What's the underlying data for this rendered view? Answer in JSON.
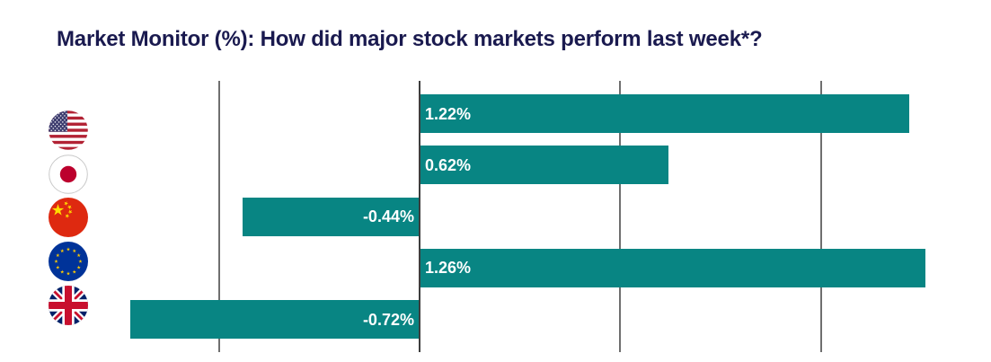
{
  "title": "Market Monitor (%): How did major stock markets perform last week*?",
  "colors": {
    "background": "#FFFFFF",
    "title_text": "#1A1A4F",
    "bar_fill": "#088583",
    "bar_label_text": "#FFFFFF",
    "gridline": "#6F6F6F",
    "zero_axis": "#3E3E3E"
  },
  "chart_data": {
    "type": "bar",
    "orientation": "horizontal",
    "title": "Market Monitor (%): How did major stock markets perform last week*?",
    "categories": [
      "United States",
      "Japan",
      "China",
      "European Union",
      "United Kingdom"
    ],
    "category_icons": [
      "us-flag-icon",
      "japan-flag-icon",
      "china-flag-icon",
      "eu-flag-icon",
      "uk-flag-icon"
    ],
    "values": [
      1.22,
      0.62,
      -0.44,
      1.26,
      -0.72
    ],
    "value_labels": [
      "1.22%",
      "0.62%",
      "-0.44%",
      "1.26%",
      "-0.72%"
    ],
    "unit": "%",
    "xlim": [
      -0.9,
      1.42
    ],
    "gridlines_x": [
      -0.5,
      0,
      0.5,
      1.0
    ],
    "grid": true,
    "legend": false,
    "axis_tick_labels": false,
    "value_label_position": "inside-near-zero-axis"
  }
}
